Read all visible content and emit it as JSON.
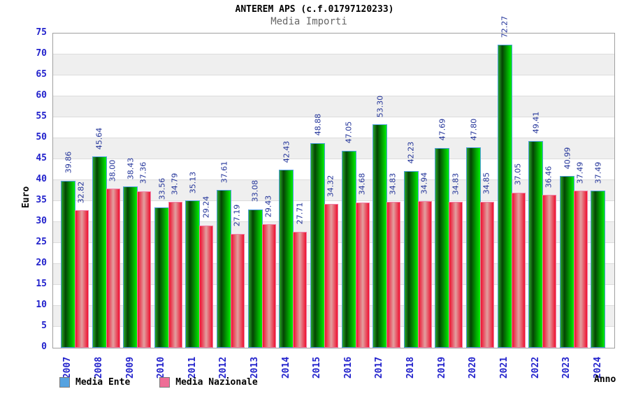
{
  "header": {
    "title": "ANTEREM APS (c.f.01797120233)",
    "subtitle": "Media Importi"
  },
  "chart_data": {
    "type": "bar",
    "title": "ANTEREM APS (c.f.01797120233)",
    "subtitle": "Media Importi",
    "xlabel": "Anno",
    "ylabel": "Euro",
    "ylim": [
      0,
      75
    ],
    "ytick_step": 5,
    "grid": "horizontal gridlines every 5 with alternating white/gray bands",
    "legend_position": "bottom-left",
    "categories": [
      "2007",
      "2008",
      "2009",
      "2010",
      "2011",
      "2012",
      "2013",
      "2014",
      "2015",
      "2016",
      "2017",
      "2018",
      "2019",
      "2020",
      "2021",
      "2022",
      "2023",
      "2024"
    ],
    "series": [
      {
        "name": "Media Ente",
        "bar_style": "green-cylinder",
        "legend_color": "#55a2e0",
        "values": [
          39.86,
          45.64,
          38.43,
          33.56,
          35.13,
          37.61,
          33.08,
          42.43,
          48.88,
          47.05,
          53.3,
          42.23,
          47.69,
          47.8,
          72.27,
          49.41,
          40.99,
          37.49
        ],
        "labels": [
          "39.86",
          "45.64",
          "38.43",
          "33.56",
          "35.13",
          "37.61",
          "33.08",
          "42.43",
          "48.88",
          "47.05",
          "53.30",
          "42.23",
          "47.69",
          "47.80",
          "72.27",
          "49.41",
          "40.99",
          "37.49"
        ]
      },
      {
        "name": "Media Nazionale",
        "bar_style": "red-cylinder",
        "legend_color": "#ee6e96",
        "values": [
          32.82,
          38.0,
          37.36,
          34.79,
          29.24,
          27.19,
          29.43,
          27.71,
          34.32,
          34.68,
          34.83,
          34.94,
          34.83,
          34.85,
          37.05,
          36.46,
          37.49,
          null
        ],
        "labels": [
          "32.82",
          "38.00",
          "37.36",
          "34.79",
          "29.24",
          "27.19",
          "29.43",
          "27.71",
          "34.32",
          "34.68",
          "34.83",
          "34.94",
          "34.83",
          "34.85",
          "37.05",
          "36.46",
          "37.49",
          null
        ]
      }
    ],
    "colors": {
      "tick_label": "#2222cc",
      "value_label": "#223399",
      "band_gray": "#efefef",
      "gridline": "#dcdcdc",
      "plot_border": "#a0a0a0",
      "green_bar_edges": [
        "#2aa52a",
        "#044404",
        "#00ee00"
      ],
      "green_bar_border": "#4d9ddd",
      "red_bar_edges": [
        "#ee1130",
        "#e2a0a0",
        "#ee1130"
      ],
      "red_bar_border": "#f080a8"
    }
  }
}
